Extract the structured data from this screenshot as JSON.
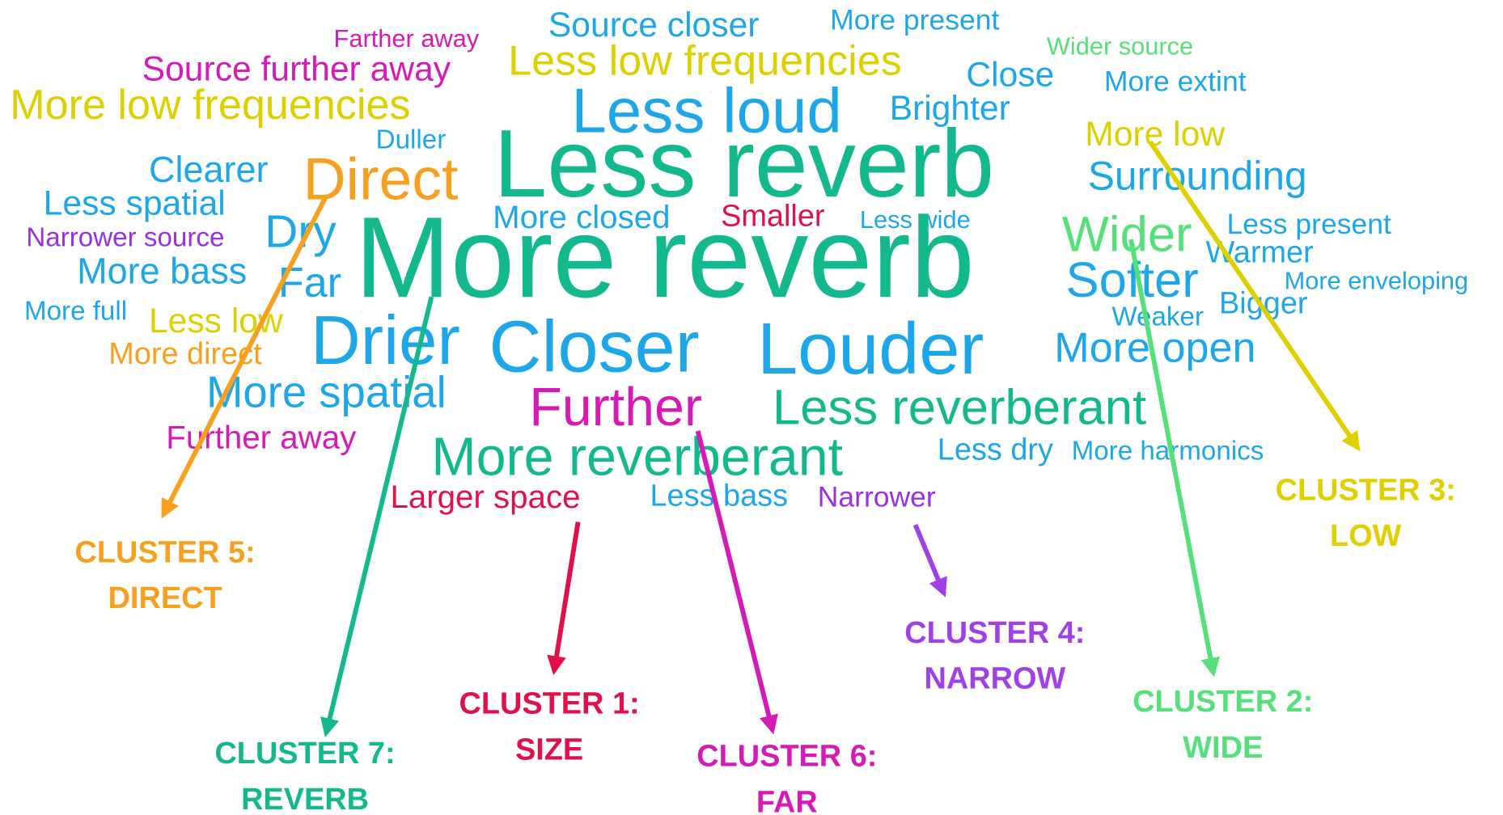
{
  "words": [
    "Source closer",
    "More present",
    "Farther away",
    "Wider source",
    "Source further away",
    "Less low frequencies",
    "Close",
    "More extint",
    "More low frequencies",
    "Less loud",
    "Brighter",
    "Duller",
    "More low",
    "Less reverb",
    "Clearer",
    "Direct",
    "Surrounding",
    "Less spatial",
    "Dry",
    "More closed",
    "Smaller",
    "Less wide",
    "Narrower source",
    "More reverb",
    "Wider",
    "Less present",
    "Warmer",
    "More bass",
    "Far",
    "Softer",
    "More enveloping",
    "More full",
    "Less low",
    "Weaker",
    "Bigger",
    "Drier",
    "Closer",
    "Louder",
    "More open",
    "More direct",
    "More spatial",
    "Further",
    "Less reverberant",
    "Further away",
    "More reverberant",
    "Less dry",
    "More harmonics",
    "Larger space",
    "Less bass",
    "Narrower"
  ],
  "clusters": [
    {
      "title": "CLUSTER 5:",
      "name": "DIRECT"
    },
    {
      "title": "CLUSTER 7:",
      "name": "REVERB"
    },
    {
      "title": "CLUSTER 1:",
      "name": "SIZE"
    },
    {
      "title": "CLUSTER 6:",
      "name": "FAR"
    },
    {
      "title": "CLUSTER 4:",
      "name": "NARROW"
    },
    {
      "title": "CLUSTER 2:",
      "name": "WIDE"
    },
    {
      "title": "CLUSTER 3:",
      "name": "LOW"
    }
  ]
}
